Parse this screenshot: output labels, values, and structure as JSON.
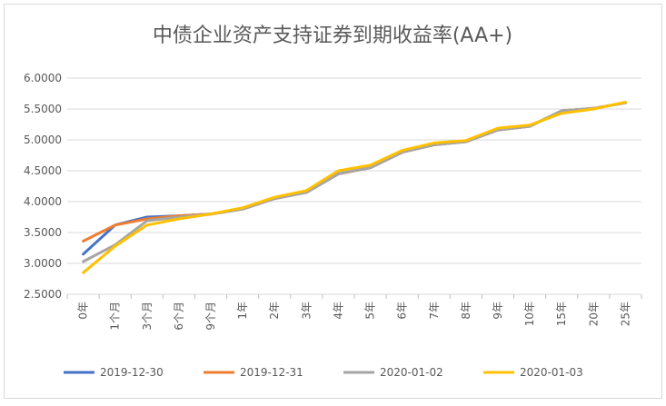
{
  "chart_data": {
    "type": "line",
    "title": "中债企业资产支持证券到期收益率(AA+)",
    "xlabel": "",
    "ylabel": "",
    "categories": [
      "0年",
      "1个月",
      "3个月",
      "6个月",
      "9个月",
      "1年",
      "2年",
      "3年",
      "4年",
      "5年",
      "6年",
      "7年",
      "8年",
      "9年",
      "10年",
      "15年",
      "20年",
      "25年"
    ],
    "y_ticks": [
      "2.5000",
      "3.0000",
      "3.5000",
      "4.0000",
      "4.5000",
      "5.0000",
      "5.5000",
      "6.0000"
    ],
    "ylim": [
      2.5,
      6.0
    ],
    "grid": true,
    "legend_position": "bottom",
    "series": [
      {
        "name": "2019-12-30",
        "color": "#4472C4",
        "values": [
          3.15,
          3.62,
          3.75,
          3.77,
          3.8,
          3.88,
          4.05,
          4.15,
          4.45,
          4.55,
          4.8,
          4.92,
          4.97,
          5.16,
          5.22,
          5.47,
          5.51,
          5.6
        ]
      },
      {
        "name": "2019-12-31",
        "color": "#ED7D31",
        "values": [
          3.36,
          3.62,
          3.72,
          3.77,
          3.8,
          3.88,
          4.05,
          4.15,
          4.45,
          4.55,
          4.8,
          4.92,
          4.97,
          5.16,
          5.22,
          5.47,
          5.51,
          5.6
        ]
      },
      {
        "name": "2020-01-02",
        "color": "#A5A5A5",
        "values": [
          3.03,
          3.3,
          3.69,
          3.75,
          3.8,
          3.88,
          4.05,
          4.15,
          4.45,
          4.55,
          4.8,
          4.92,
          4.97,
          5.16,
          5.22,
          5.47,
          5.51,
          5.6
        ]
      },
      {
        "name": "2020-01-03",
        "color": "#FFC000",
        "values": [
          2.85,
          3.28,
          3.62,
          3.72,
          3.8,
          3.9,
          4.07,
          4.18,
          4.5,
          4.59,
          4.83,
          4.95,
          4.99,
          5.19,
          5.24,
          5.43,
          5.5,
          5.61
        ]
      }
    ]
  }
}
